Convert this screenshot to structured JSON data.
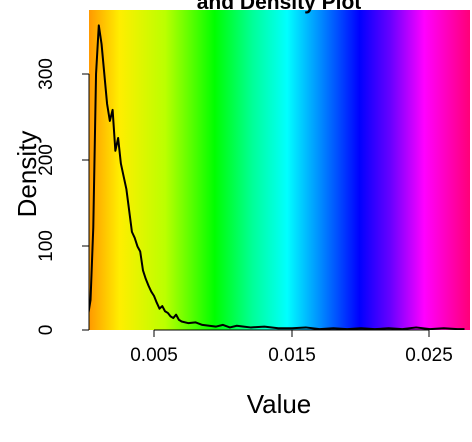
{
  "chart_data": {
    "type": "area",
    "title": "and Density Plot",
    "xlabel": "Value",
    "ylabel": "Density",
    "xlim": [
      0.0,
      0.0275
    ],
    "ylim": [
      0,
      370
    ],
    "x_ticks": [
      0.005,
      0.015,
      0.025
    ],
    "x_tick_labels": [
      "0.005",
      "0.015",
      "0.025"
    ],
    "y_ticks": [
      0,
      100,
      200,
      300
    ],
    "y_tick_labels": [
      "0",
      "100",
      "200",
      "300"
    ],
    "grid": false,
    "legend": "none",
    "background": "rainbow gradient (horizontal)",
    "gradient_colors": [
      "#FF9900",
      "#FFEE00",
      "#BBFF00",
      "#00FF00",
      "#00FF99",
      "#00FFFF",
      "#0088FF",
      "#0000FF",
      "#6600FF",
      "#FF00FF",
      "#FF0077"
    ],
    "line_color": "#000000",
    "series": [
      {
        "x": [
          0.0002,
          0.0004,
          0.0006,
          0.0008,
          0.001,
          0.0012,
          0.0014,
          0.0016,
          0.0018,
          0.002,
          0.0022,
          0.0024,
          0.0026,
          0.0028,
          0.003,
          0.0032,
          0.0034,
          0.0036,
          0.0038,
          0.004,
          0.0042,
          0.0044,
          0.0046,
          0.0048,
          0.005,
          0.0052,
          0.0054,
          0.0056,
          0.0058,
          0.006,
          0.0062,
          0.0064,
          0.0066,
          0.0068,
          0.007,
          0.0075,
          0.008,
          0.0085,
          0.009,
          0.0095,
          0.01,
          0.0105,
          0.011,
          0.0115,
          0.012,
          0.013,
          0.014,
          0.015,
          0.016,
          0.017,
          0.018,
          0.019,
          0.02,
          0.021,
          0.022,
          0.023,
          0.024,
          0.025,
          0.026,
          0.027,
          0.0275
        ],
        "y": [
          15,
          35,
          120,
          300,
          357,
          335,
          300,
          265,
          245,
          258,
          210,
          225,
          195,
          180,
          165,
          140,
          115,
          108,
          98,
          92,
          70,
          60,
          52,
          45,
          40,
          32,
          25,
          28,
          22,
          20,
          16,
          14,
          18,
          12,
          10,
          8,
          9,
          6,
          5,
          4,
          6,
          3,
          5,
          4,
          3,
          4,
          2,
          2,
          3,
          1,
          2,
          1,
          2,
          1,
          2,
          1,
          3,
          1,
          2,
          1,
          1
        ]
      }
    ]
  }
}
